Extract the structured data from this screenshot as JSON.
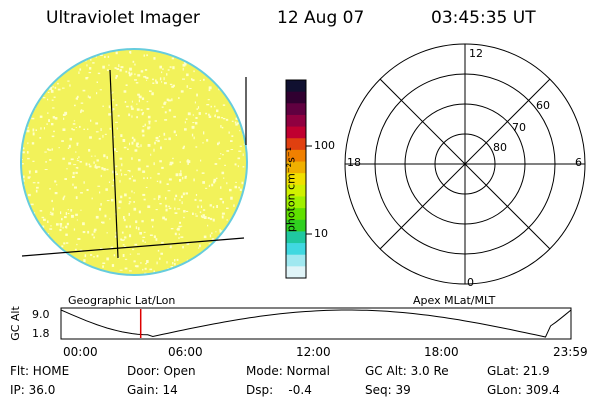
{
  "header": {
    "instrument": "Ultraviolet Imager",
    "date": "12 Aug 07",
    "time": "03:45:35 UT"
  },
  "colorbar": {
    "unit_label": "photon cm⁻²s⁻¹",
    "ticks": [
      "100",
      "10"
    ]
  },
  "polar_plot": {
    "latitude_labels": [
      "60",
      "70",
      "80"
    ],
    "mlt_labels": {
      "top": "12",
      "left": "18",
      "right": "6",
      "bottom": "0"
    }
  },
  "labels": {
    "left_panel": "Geographic Lat/Lon",
    "right_panel": "Apex MLat/MLT"
  },
  "altitude_plot": {
    "ylabel": "GC Alt",
    "yticks": [
      "9.0",
      "1.8"
    ],
    "xticks": [
      "00:00",
      "06:00",
      "12:00",
      "18:00",
      "23:59"
    ],
    "current_time_marker": "03:45"
  },
  "info": {
    "row1": [
      "Flt: HOME",
      "Door: Open",
      "Mode: Normal",
      "GC Alt: 3.0 Re",
      "GLat: 21.9"
    ],
    "row2": [
      "IP: 36.0",
      "Gain: 14",
      "Dsp:    -0.4",
      "Seq: 39",
      "GLon: 309.4"
    ]
  },
  "colors": {
    "disk_fill": "#f2f25a",
    "disk_speckle": "#ffffc8",
    "disk_edge": "#66ccdd",
    "marker": "#dd0000"
  }
}
